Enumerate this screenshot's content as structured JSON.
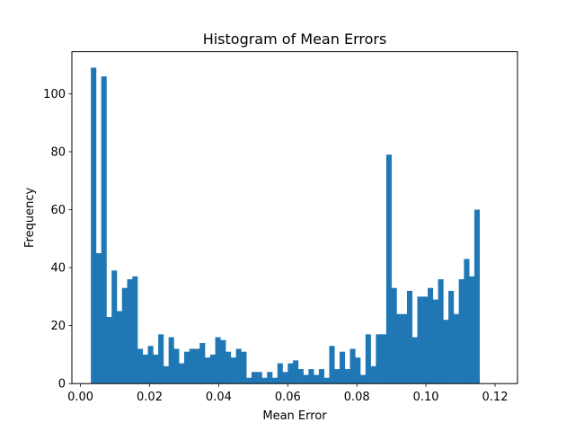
{
  "chart_data": {
    "type": "bar",
    "title": "Histogram of Mean Errors",
    "xlabel": "Mean Error",
    "ylabel": "Frequency",
    "xlim": [
      -0.0025,
      0.1265
    ],
    "ylim": [
      0,
      114.5
    ],
    "x_ticks": [
      0.0,
      0.02,
      0.04,
      0.06,
      0.08,
      0.1,
      0.12
    ],
    "x_tick_labels": [
      "0.00",
      "0.02",
      "0.04",
      "0.06",
      "0.08",
      "0.10",
      "0.12"
    ],
    "y_ticks": [
      0,
      20,
      40,
      60,
      80,
      100
    ],
    "y_tick_labels": [
      "0",
      "20",
      "40",
      "60",
      "80",
      "100"
    ],
    "bin_start": 0.003,
    "bin_width": 0.0015,
    "bar_color": "#1f77b4",
    "grid": false,
    "values": [
      109,
      45,
      106,
      23,
      39,
      25,
      33,
      36,
      37,
      12,
      10,
      13,
      10,
      17,
      6,
      16,
      12,
      7,
      11,
      12,
      12,
      14,
      9,
      10,
      16,
      15,
      11,
      9,
      12,
      11,
      2,
      4,
      4,
      2,
      4,
      2,
      7,
      4,
      7,
      8,
      5,
      3,
      5,
      3,
      5,
      2,
      13,
      5,
      11,
      5,
      12,
      9,
      3,
      17,
      6,
      17,
      17,
      79,
      33,
      24,
      24,
      32,
      16,
      30,
      30,
      33,
      29,
      36,
      22,
      32,
      24,
      36,
      43,
      37,
      60
    ]
  }
}
